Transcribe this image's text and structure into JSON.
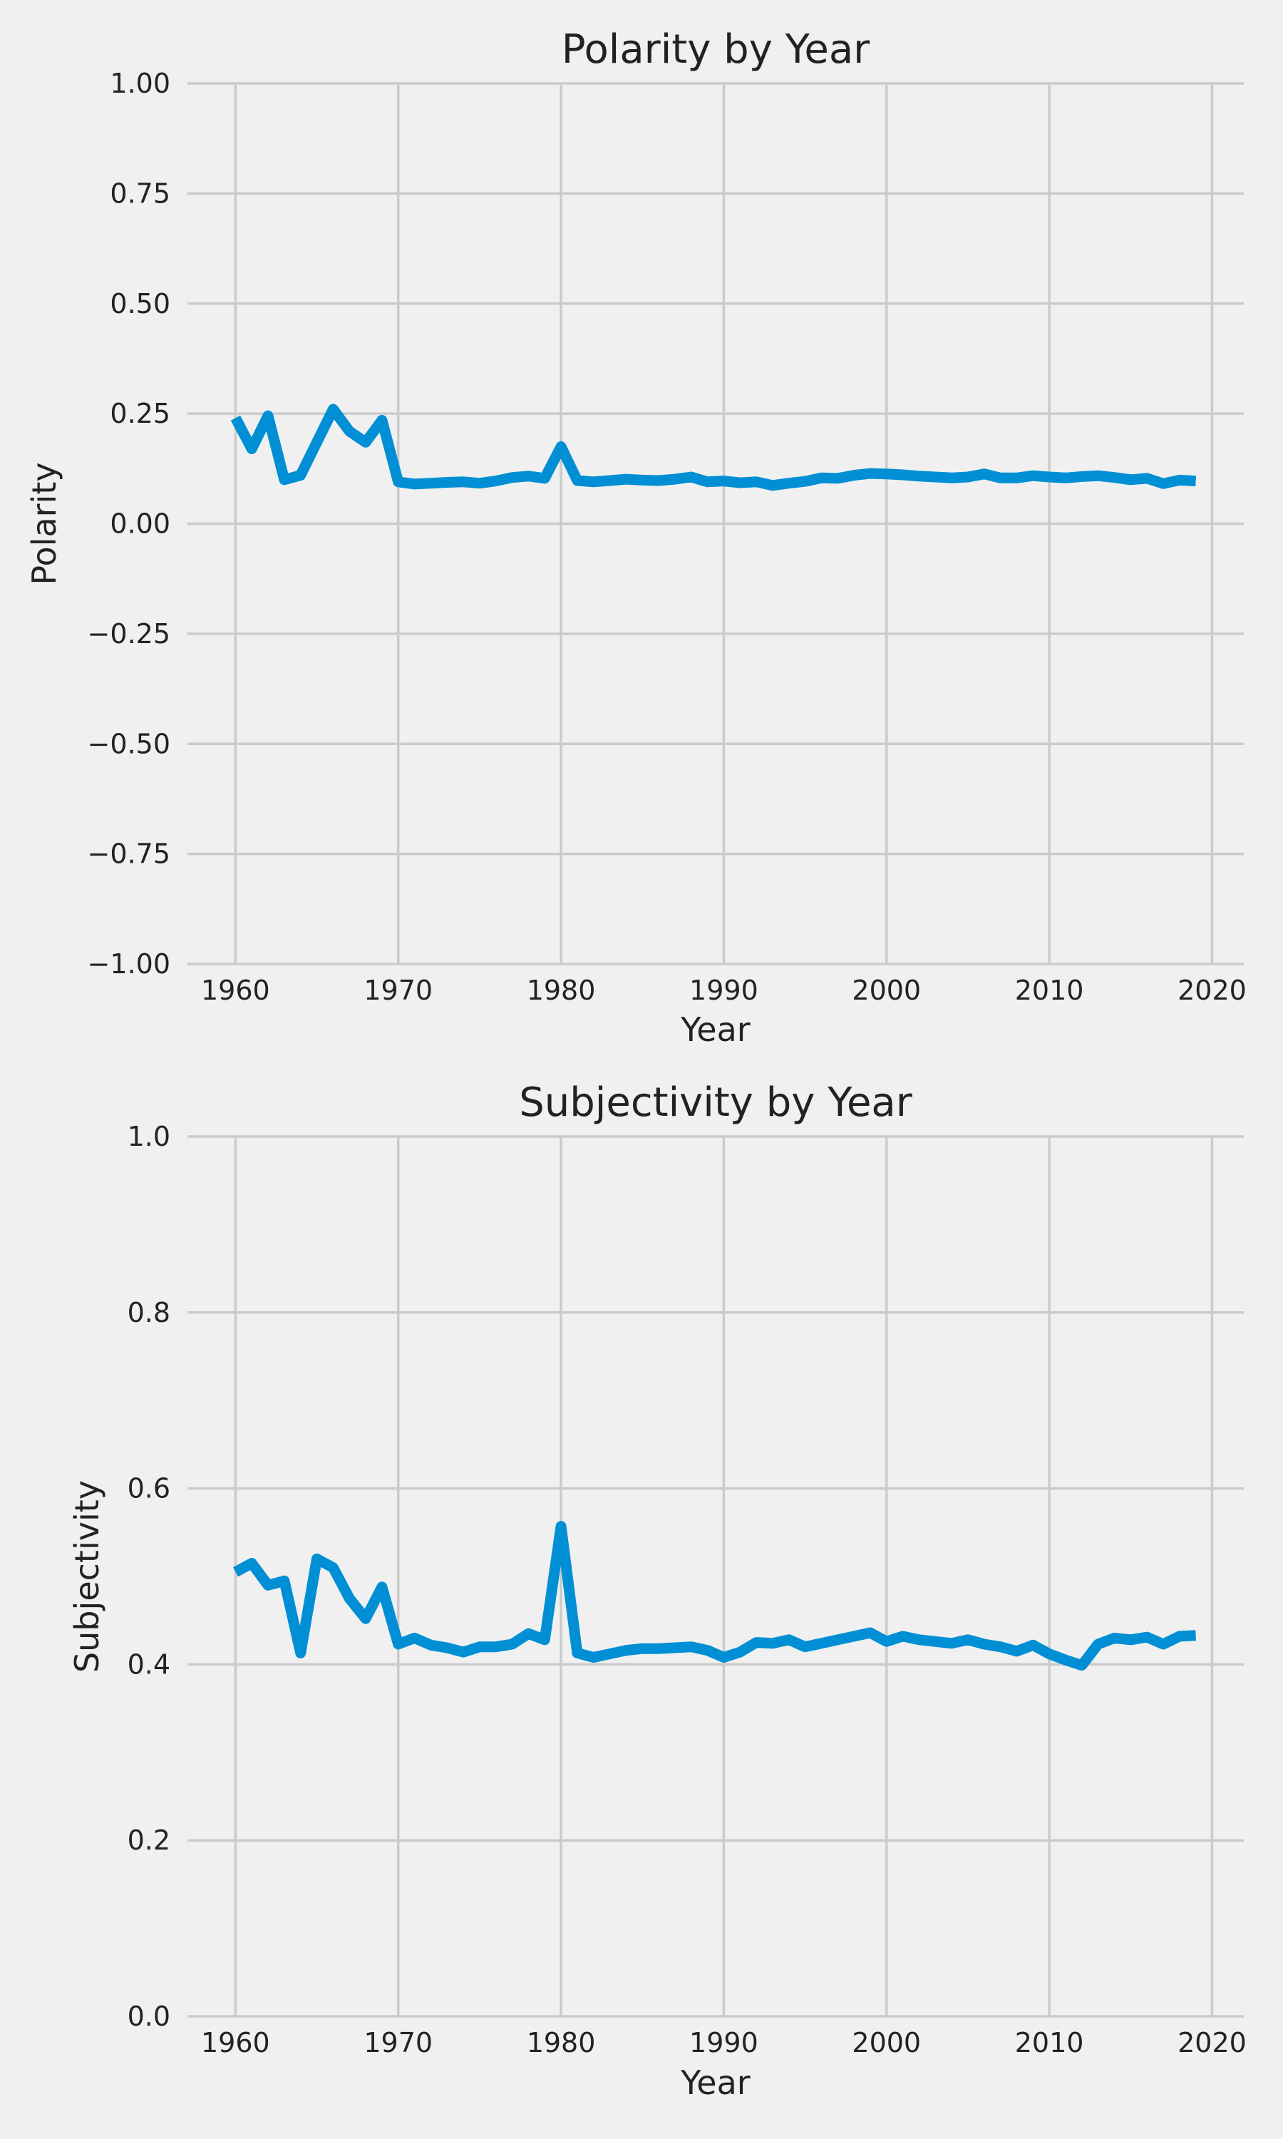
{
  "colors": {
    "background": "#f0f0f0",
    "grid": "#cbcbcb",
    "line": "#008fd5"
  },
  "chart_data": [
    {
      "type": "line",
      "title": "Polarity by Year",
      "xlabel": "Year",
      "ylabel": "Polarity",
      "xlim": [
        1957.05,
        2021.95
      ],
      "ylim": [
        -1.0,
        1.0
      ],
      "xticks": [
        1960,
        1970,
        1980,
        1990,
        2000,
        2010,
        2020
      ],
      "yticks": [
        -1.0,
        -0.75,
        -0.5,
        -0.25,
        0.0,
        0.25,
        0.5,
        0.75,
        1.0
      ],
      "ytick_labels": [
        "−1.00",
        "−0.75",
        "−0.50",
        "−0.25",
        "0.00",
        "0.25",
        "0.50",
        "0.75",
        "1.00"
      ],
      "grid": true,
      "series": [
        {
          "x": [
            1960,
            1961,
            1962,
            1963,
            1964,
            1965,
            1966,
            1967,
            1968,
            1969,
            1970,
            1971,
            1972,
            1973,
            1974,
            1975,
            1976,
            1977,
            1978,
            1979,
            1980,
            1981,
            1982,
            1983,
            1984,
            1985,
            1986,
            1987,
            1988,
            1989,
            1990,
            1991,
            1992,
            1993,
            1994,
            1995,
            1996,
            1997,
            1998,
            1999,
            2000,
            2001,
            2002,
            2003,
            2004,
            2005,
            2006,
            2007,
            2008,
            2009,
            2010,
            2011,
            2012,
            2013,
            2014,
            2015,
            2016,
            2017,
            2018,
            2019
          ],
          "values": [
            0.24,
            0.17,
            0.245,
            0.1,
            0.11,
            0.185,
            0.26,
            0.21,
            0.185,
            0.235,
            0.095,
            0.09,
            0.092,
            0.094,
            0.095,
            0.092,
            0.097,
            0.105,
            0.108,
            0.103,
            0.175,
            0.098,
            0.095,
            0.098,
            0.101,
            0.099,
            0.098,
            0.101,
            0.106,
            0.095,
            0.097,
            0.093,
            0.095,
            0.087,
            0.092,
            0.096,
            0.104,
            0.103,
            0.11,
            0.114,
            0.113,
            0.111,
            0.108,
            0.106,
            0.104,
            0.106,
            0.113,
            0.104,
            0.104,
            0.109,
            0.106,
            0.104,
            0.107,
            0.109,
            0.105,
            0.1,
            0.103,
            0.091,
            0.099,
            0.097
          ]
        }
      ]
    },
    {
      "type": "line",
      "title": "Subjectivity by Year",
      "xlabel": "Year",
      "ylabel": "Subjectivity",
      "xlim": [
        1957.05,
        2021.95
      ],
      "ylim": [
        0.0,
        1.0
      ],
      "xticks": [
        1960,
        1970,
        1980,
        1990,
        2000,
        2010,
        2020
      ],
      "yticks": [
        0.0,
        0.2,
        0.4,
        0.6,
        0.8,
        1.0
      ],
      "ytick_labels": [
        "0.0",
        "0.2",
        "0.4",
        "0.6",
        "0.8",
        "1.0"
      ],
      "grid": true,
      "series": [
        {
          "x": [
            1960,
            1961,
            1962,
            1963,
            1964,
            1965,
            1966,
            1967,
            1968,
            1969,
            1970,
            1971,
            1972,
            1973,
            1974,
            1975,
            1976,
            1977,
            1978,
            1979,
            1980,
            1981,
            1982,
            1983,
            1984,
            1985,
            1986,
            1987,
            1988,
            1989,
            1990,
            1991,
            1992,
            1993,
            1994,
            1995,
            1996,
            1997,
            1998,
            1999,
            2000,
            2001,
            2002,
            2003,
            2004,
            2005,
            2006,
            2007,
            2008,
            2009,
            2010,
            2011,
            2012,
            2013,
            2014,
            2015,
            2016,
            2017,
            2018,
            2019
          ],
          "values": [
            0.505,
            0.515,
            0.49,
            0.495,
            0.413,
            0.52,
            0.51,
            0.475,
            0.452,
            0.488,
            0.423,
            0.43,
            0.422,
            0.419,
            0.414,
            0.42,
            0.42,
            0.423,
            0.435,
            0.428,
            0.557,
            0.413,
            0.408,
            0.412,
            0.416,
            0.418,
            0.418,
            0.419,
            0.42,
            0.416,
            0.408,
            0.414,
            0.425,
            0.424,
            0.428,
            0.42,
            0.424,
            0.428,
            0.432,
            0.436,
            0.426,
            0.432,
            0.428,
            0.426,
            0.424,
            0.428,
            0.423,
            0.42,
            0.415,
            0.422,
            0.412,
            0.405,
            0.399,
            0.423,
            0.43,
            0.428,
            0.431,
            0.423,
            0.432,
            0.433
          ]
        }
      ]
    }
  ]
}
